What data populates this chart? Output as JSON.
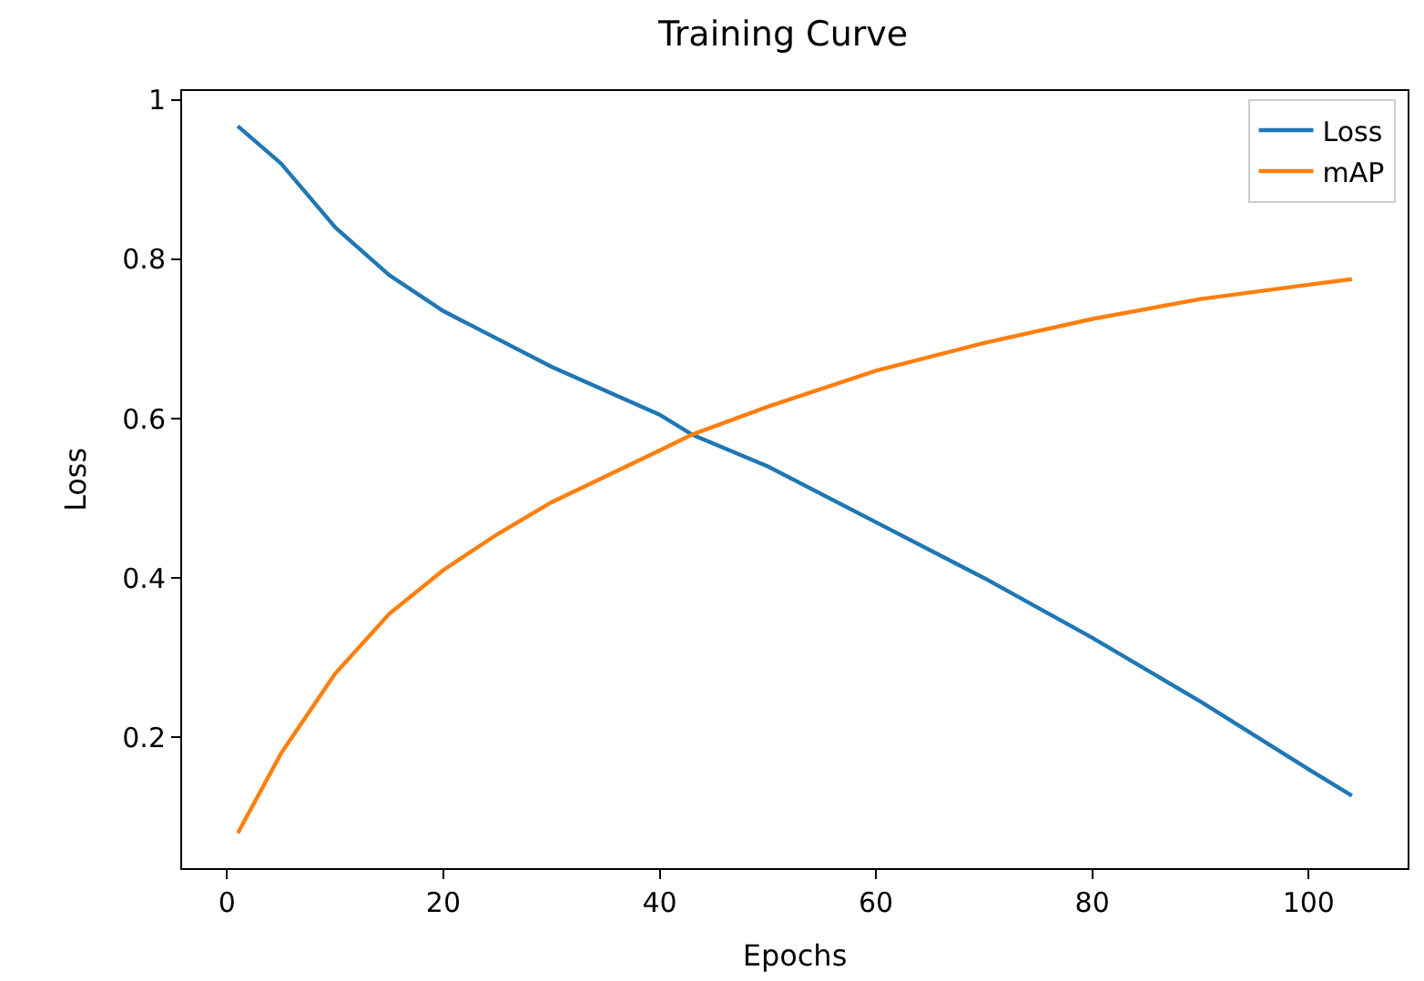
{
  "chart_data": {
    "type": "line",
    "title": "Training Curve",
    "xlabel": "Epochs",
    "ylabel": "Loss",
    "xlim": [
      -4.15,
      109.15
    ],
    "ylim": [
      0.036,
      1.011
    ],
    "xticks": [
      0,
      20,
      40,
      60,
      80,
      100
    ],
    "yticks": [
      0.2,
      0.4,
      0.6,
      0.8,
      1
    ],
    "legend": "top right",
    "series": [
      {
        "name": "Loss",
        "color": "#1f77b4",
        "x": [
          1,
          5,
          10,
          15,
          20,
          25,
          30,
          40,
          43,
          50,
          60,
          70,
          80,
          90,
          100,
          104
        ],
        "values": [
          0.967,
          0.92,
          0.84,
          0.78,
          0.735,
          0.7,
          0.665,
          0.605,
          0.58,
          0.54,
          0.47,
          0.4,
          0.325,
          0.245,
          0.16,
          0.127
        ]
      },
      {
        "name": "mAP",
        "color": "#ff7f0e",
        "x": [
          1,
          5,
          10,
          15,
          20,
          25,
          30,
          40,
          43,
          50,
          60,
          70,
          80,
          90,
          100,
          104
        ],
        "values": [
          0.08,
          0.18,
          0.28,
          0.355,
          0.41,
          0.455,
          0.495,
          0.56,
          0.58,
          0.615,
          0.66,
          0.695,
          0.725,
          0.75,
          0.768,
          0.775
        ]
      }
    ]
  }
}
